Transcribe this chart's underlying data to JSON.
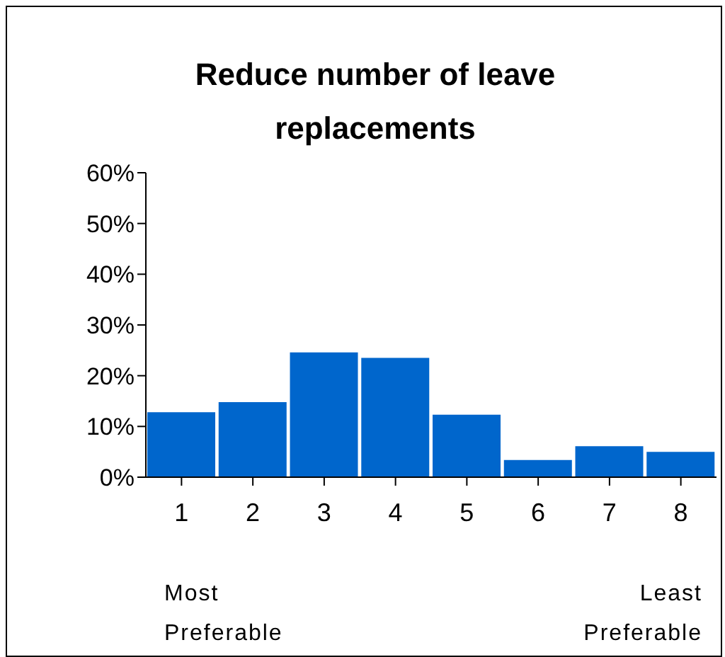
{
  "chart_data": {
    "type": "bar",
    "title": "Reduce number of leave replacements",
    "categories": [
      "1",
      "2",
      "3",
      "4",
      "5",
      "6",
      "7",
      "8"
    ],
    "values": [
      12.8,
      14.8,
      24.6,
      23.5,
      12.3,
      3.4,
      6.1,
      5.0
    ],
    "color": "#0066cc",
    "ylim": [
      0,
      60
    ],
    "yticks": [
      {
        "value": 0,
        "label": "0%"
      },
      {
        "value": 10,
        "label": "10%"
      },
      {
        "value": 20,
        "label": "20%"
      },
      {
        "value": 30,
        "label": "30%"
      },
      {
        "value": 40,
        "label": "40%"
      },
      {
        "value": 50,
        "label": "50%"
      },
      {
        "value": 60,
        "label": "60%"
      }
    ],
    "annotations": [
      "Most Preferable",
      "Least Preferable"
    ]
  }
}
